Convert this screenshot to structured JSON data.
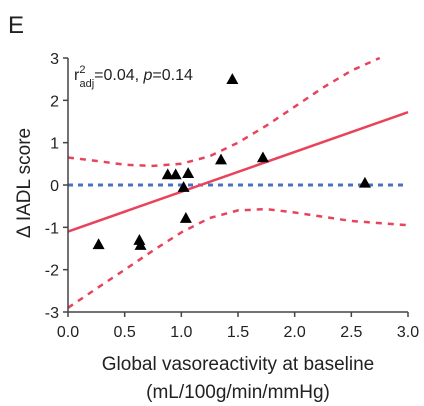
{
  "panel_label": "E",
  "annotation": {
    "r": "r",
    "sup": "2",
    "sub": "adj",
    "rest": "=0.04, ",
    "p": "p",
    "pval": "=0.14"
  },
  "colors": {
    "points": "#000000",
    "fit_line": "#e8435a",
    "ci": "#e8435a",
    "zero_line": "#4a72c4",
    "axis": "#444444"
  },
  "chart_data": {
    "type": "scatter",
    "title": "",
    "xlabel": "Global vasoreactivity at baseline",
    "xlabel_line2": "(mL/100g/min/mmHg)",
    "ylabel": "Δ IADL score",
    "xlim": [
      0.0,
      3.0
    ],
    "ylim": [
      -3,
      3
    ],
    "xticks": [
      "0.0",
      "0.5",
      "1.0",
      "1.5",
      "2.0",
      "2.5",
      "3.0"
    ],
    "yticks": [
      "3",
      "2",
      "1",
      "0",
      "-1",
      "-2",
      "-3"
    ],
    "grid": false,
    "legend": "none",
    "points": [
      {
        "x": 0.27,
        "y": -1.4
      },
      {
        "x": 0.63,
        "y": -1.3
      },
      {
        "x": 0.64,
        "y": -1.42
      },
      {
        "x": 0.88,
        "y": 0.25
      },
      {
        "x": 0.95,
        "y": 0.25
      },
      {
        "x": 1.02,
        "y": -0.05
      },
      {
        "x": 1.04,
        "y": -0.78
      },
      {
        "x": 1.06,
        "y": 0.28
      },
      {
        "x": 1.35,
        "y": 0.6
      },
      {
        "x": 1.45,
        "y": 2.5
      },
      {
        "x": 1.72,
        "y": 0.65
      },
      {
        "x": 2.62,
        "y": 0.05
      }
    ],
    "fit_line": [
      {
        "x": 0.0,
        "y": -1.1
      },
      {
        "x": 3.0,
        "y": 1.72
      }
    ],
    "zero_line": 0,
    "ci_upper": [
      {
        "x": 0.0,
        "y": 0.65
      },
      {
        "x": 0.25,
        "y": 0.57
      },
      {
        "x": 0.5,
        "y": 0.48
      },
      {
        "x": 0.75,
        "y": 0.45
      },
      {
        "x": 1.0,
        "y": 0.5
      },
      {
        "x": 1.25,
        "y": 0.68
      },
      {
        "x": 1.5,
        "y": 1.0
      },
      {
        "x": 1.75,
        "y": 1.4
      },
      {
        "x": 2.0,
        "y": 1.85
      },
      {
        "x": 2.25,
        "y": 2.3
      },
      {
        "x": 2.5,
        "y": 2.7
      },
      {
        "x": 2.75,
        "y": 3.0
      }
    ],
    "ci_lower": [
      {
        "x": 0.0,
        "y": -2.9
      },
      {
        "x": 0.25,
        "y": -2.45
      },
      {
        "x": 0.5,
        "y": -2.0
      },
      {
        "x": 0.75,
        "y": -1.55
      },
      {
        "x": 1.0,
        "y": -1.12
      },
      {
        "x": 1.25,
        "y": -0.78
      },
      {
        "x": 1.5,
        "y": -0.6
      },
      {
        "x": 1.75,
        "y": -0.57
      },
      {
        "x": 2.0,
        "y": -0.65
      },
      {
        "x": 2.5,
        "y": -0.85
      },
      {
        "x": 3.0,
        "y": -0.95
      }
    ]
  }
}
